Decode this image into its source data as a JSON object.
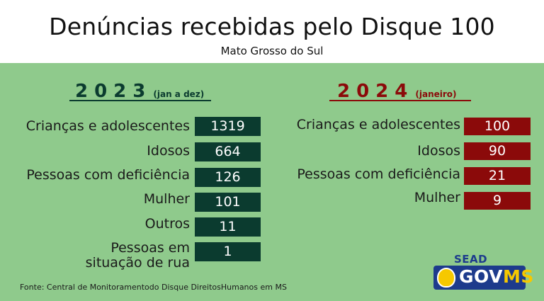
{
  "header": {
    "title": "Denúncias recebidas pelo Disque 100",
    "subtitle": "Mato Grosso do Sul"
  },
  "colors": {
    "background": "#8fca8c",
    "header_bg": "#ffffff",
    "left_accent": "#0b3b2f",
    "right_accent": "#8b0a0a"
  },
  "left": {
    "year": "2023",
    "range": "(jan a dez)",
    "rows": [
      {
        "label": "Crianças e adolescentes",
        "value": "1319"
      },
      {
        "label": "Idosos",
        "value": "664"
      },
      {
        "label": "Pessoas com deficiência",
        "value": "126"
      },
      {
        "label": "Mulher",
        "value": "101"
      },
      {
        "label": "Outros",
        "value": "11"
      },
      {
        "label_line1": "Pessoas em",
        "label_line2": "situação de rua",
        "value": "1"
      }
    ]
  },
  "right": {
    "year": "2024",
    "range": "(janeiro)",
    "rows": [
      {
        "label": "Crianças e adolescentes",
        "value": "100"
      },
      {
        "label": "Idosos",
        "value": "90"
      },
      {
        "label": "Pessoas com deficiência",
        "value": "21"
      },
      {
        "label": "Mulher",
        "value": "9"
      }
    ]
  },
  "footer": {
    "source": "Fonte: Central de Monitoramentodo Disque DireitosHumanos em MS"
  },
  "logo": {
    "sead": "SEAD",
    "gov": "GOV",
    "ms": "MS",
    "seal_icon": "ms-state-seal-icon"
  }
}
